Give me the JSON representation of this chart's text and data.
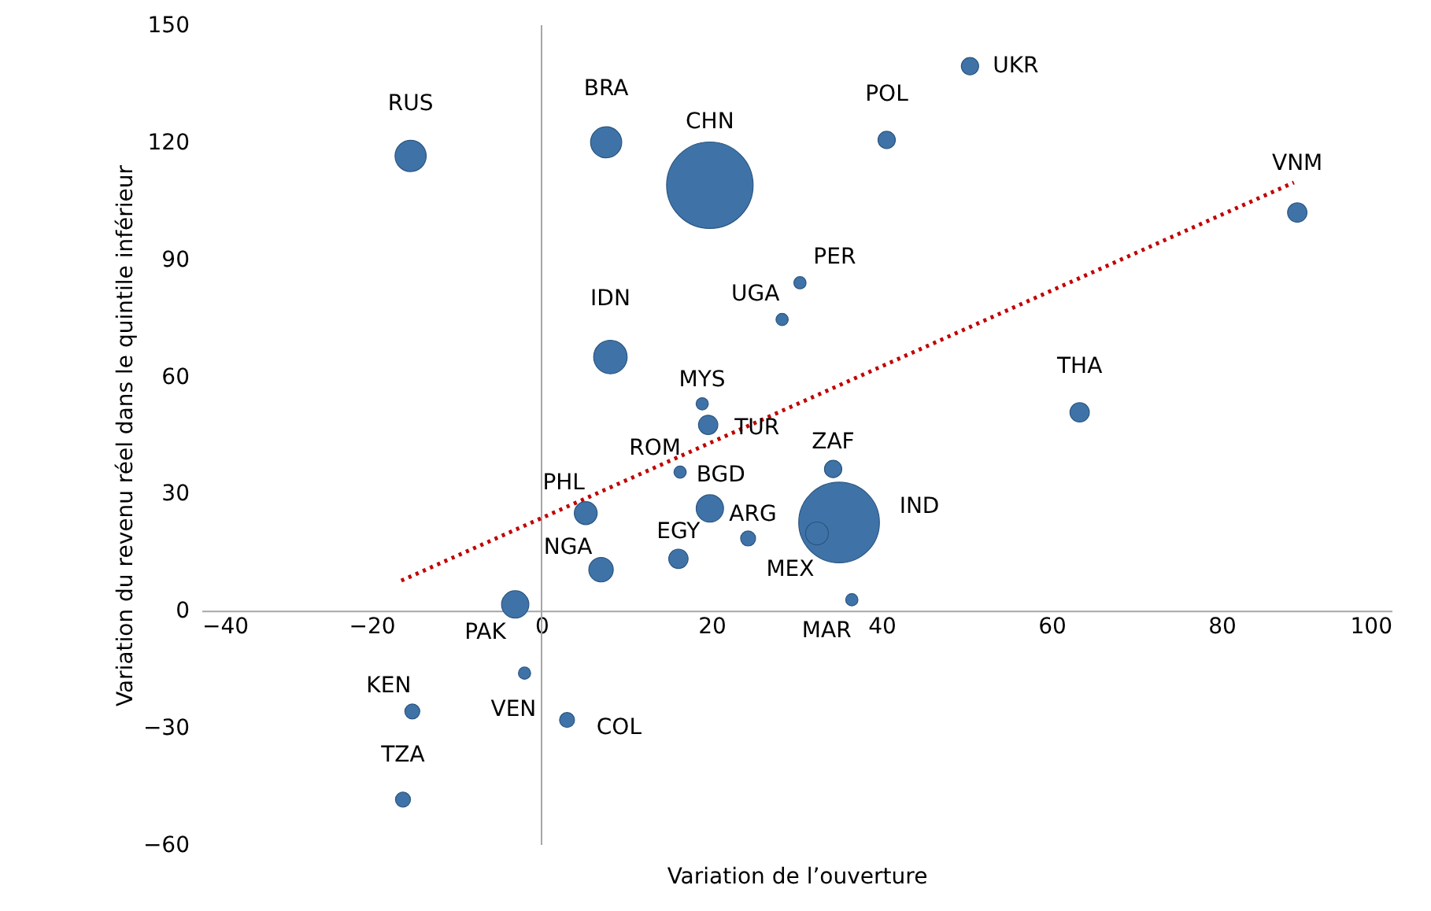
{
  "chart_data": {
    "type": "bubble",
    "xlabel": "Variation de l’ouverture",
    "ylabel": "Variation du revenu réel dans le quintile inférieur",
    "xlim": [
      -40,
      100
    ],
    "xticks": [
      -40,
      -20,
      0,
      20,
      40,
      60,
      80,
      100
    ],
    "ylim": [
      -60,
      150
    ],
    "yticks": [
      -60,
      -30,
      0,
      30,
      60,
      90,
      120,
      150
    ],
    "grid": false,
    "series": [
      {
        "color": "#3f73a8",
        "x": [
          -15.4,
          7.6,
          19.8,
          40.6,
          50.4,
          88.9,
          30.4,
          28.3,
          8.1,
          18.9,
          19.6,
          63.3,
          16.3,
          34.3,
          5.2,
          19.8,
          35.0,
          24.3,
          32.4,
          16.1,
          7.0,
          36.5,
          -3.1,
          -15.2,
          -2.0,
          3.0,
          -16.3
        ],
        "values": [
          116.5,
          120,
          109,
          120.6,
          139.5,
          102,
          84,
          74.6,
          65,
          53,
          47.6,
          50.8,
          35.5,
          36.3,
          25,
          26.2,
          22.6,
          18.5,
          19.8,
          13.3,
          10.5,
          2.8,
          1.6,
          -25.8,
          -16,
          -28,
          -48.4
        ],
        "sizes": [
          0.13,
          0.13,
          1,
          0.04,
          0.04,
          0.05,
          0.02,
          0.02,
          0.15,
          0.02,
          0.05,
          0.05,
          0.02,
          0.04,
          0.07,
          0.1,
          0.87,
          0.03,
          0.07,
          0.05,
          0.08,
          0.02,
          0.1,
          0.03,
          0.02,
          0.03,
          0.03
        ]
      },
      {
        "type": "line",
        "color": "#c00000",
        "line_style": "dotted",
        "x": [
          -16.5,
          88.5
        ],
        "values": [
          7.7,
          109.7
        ]
      }
    ],
    "ref_lines": [
      {
        "axis": "x",
        "value": 0,
        "color": "#a6a6a6"
      }
    ],
    "annotations": [
      {
        "text": "RUS",
        "x": -15.4,
        "y": 116.5
      },
      {
        "text": "BRA",
        "x": 7.6,
        "y": 120
      },
      {
        "text": "CHN",
        "x": 19.8,
        "y": 109
      },
      {
        "text": "POL",
        "x": 40.6,
        "y": 120.6
      },
      {
        "text": "UKR",
        "x": 50.4,
        "y": 139.5
      },
      {
        "text": "VNM",
        "x": 88.9,
        "y": 102
      },
      {
        "text": "PER",
        "x": 30.4,
        "y": 84
      },
      {
        "text": "UGA",
        "x": 28.3,
        "y": 74.6
      },
      {
        "text": "IDN",
        "x": 8.1,
        "y": 65
      },
      {
        "text": "MYS",
        "x": 18.9,
        "y": 53
      },
      {
        "text": "TUR",
        "x": 19.6,
        "y": 47.6
      },
      {
        "text": "THA",
        "x": 63.3,
        "y": 50.8
      },
      {
        "text": "ROM",
        "x": 16.3,
        "y": 35.5
      },
      {
        "text": "ZAF",
        "x": 34.3,
        "y": 36.3
      },
      {
        "text": "PHL",
        "x": 5.2,
        "y": 25
      },
      {
        "text": "BGD",
        "x": 19.8,
        "y": 26.2
      },
      {
        "text": "IND",
        "x": 35.0,
        "y": 22.6
      },
      {
        "text": "ARG",
        "x": 24.3,
        "y": 18.5
      },
      {
        "text": "MEX",
        "x": 32.4,
        "y": 19.8
      },
      {
        "text": "EGY",
        "x": 16.1,
        "y": 13.3
      },
      {
        "text": "NGA",
        "x": 7.0,
        "y": 10.5
      },
      {
        "text": "MAR",
        "x": 36.5,
        "y": 2.8
      },
      {
        "text": "PAK",
        "x": -3.1,
        "y": 1.6
      },
      {
        "text": "KEN",
        "x": -15.2,
        "y": -25.8
      },
      {
        "text": "VEN",
        "x": -2.0,
        "y": -16
      },
      {
        "text": "COL",
        "x": 3.0,
        "y": -28
      },
      {
        "text": "TZA",
        "x": -16.3,
        "y": -48.4
      }
    ]
  }
}
